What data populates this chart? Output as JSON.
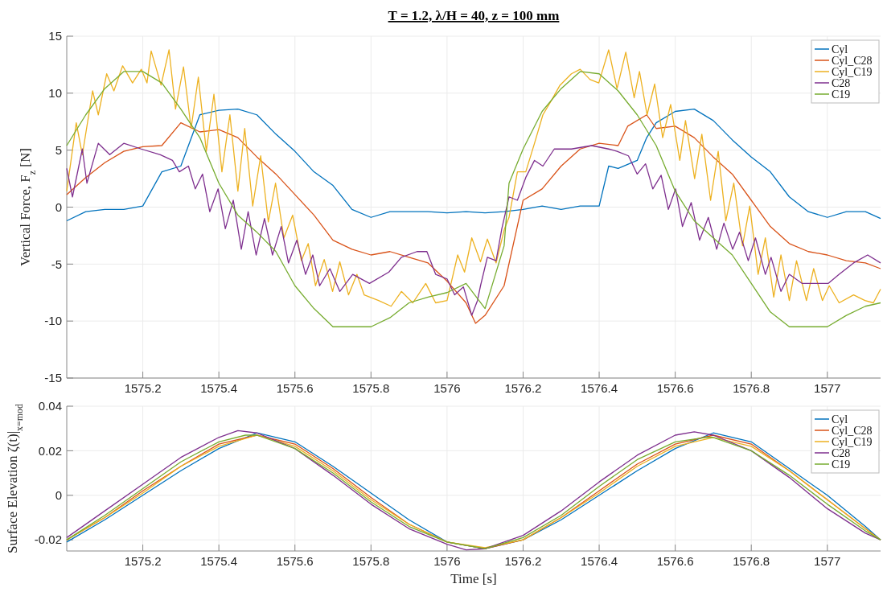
{
  "chart_data": [
    {
      "type": "line",
      "title": "T = 1.2, λ/H = 40, z = 100 mm",
      "ylabel": "Vertical Force, F$_{z}$ [N]",
      "xlim": [
        1575,
        1577.14
      ],
      "xticks": [
        1575.2,
        1575.4,
        1575.6,
        1575.8,
        1576,
        1576.2,
        1576.4,
        1576.6,
        1576.8,
        1577
      ],
      "ylim": [
        -15,
        15
      ],
      "yticks": [
        -15,
        -10,
        -5,
        0,
        5,
        10,
        15
      ],
      "grid": true,
      "legend": "top right",
      "series": [
        {
          "name": "Cyl",
          "color": "#0072bd",
          "x": [
            1575,
            1575.05,
            1575.1,
            1575.15,
            1575.2,
            1575.25,
            1575.3,
            1575.35,
            1575.4,
            1575.45,
            1575.5,
            1575.55,
            1575.6,
            1575.65,
            1575.7,
            1575.75,
            1575.8,
            1575.85,
            1575.9,
            1575.95,
            1576,
            1576.05,
            1576.1,
            1576.15,
            1576.2,
            1576.25,
            1576.3,
            1576.35,
            1576.4,
            1576.425,
            1576.45,
            1576.5,
            1576.525,
            1576.55,
            1576.6,
            1576.65,
            1576.7,
            1576.75,
            1576.8,
            1576.85,
            1576.9,
            1576.95,
            1577,
            1577.05,
            1577.1,
            1577.14
          ],
          "values": [
            -1.2,
            -0.4,
            -0.2,
            -0.2,
            0.1,
            3.1,
            3.6,
            8.1,
            8.5,
            8.6,
            8.1,
            6.4,
            4.9,
            3.1,
            1.9,
            -0.2,
            -0.9,
            -0.4,
            -0.4,
            -0.4,
            -0.5,
            -0.4,
            -0.5,
            -0.4,
            -0.2,
            0.1,
            -0.2,
            0.1,
            0.1,
            3.6,
            3.4,
            4.1,
            6.1,
            7.4,
            8.4,
            8.6,
            7.6,
            5.9,
            4.4,
            3.1,
            0.9,
            -0.4,
            -0.9,
            -0.4,
            -0.4,
            -1.0
          ]
        },
        {
          "name": "Cyl_C28",
          "color": "#d95319",
          "x": [
            1575,
            1575.05,
            1575.1,
            1575.15,
            1575.2,
            1575.25,
            1575.3,
            1575.35,
            1575.4,
            1575.45,
            1575.5,
            1575.55,
            1575.6,
            1575.65,
            1575.7,
            1575.75,
            1575.8,
            1575.85,
            1575.9,
            1575.95,
            1576,
            1576.05,
            1576.075,
            1576.1,
            1576.15,
            1576.2,
            1576.25,
            1576.3,
            1576.35,
            1576.4,
            1576.45,
            1576.475,
            1576.525,
            1576.55,
            1576.6,
            1576.65,
            1576.7,
            1576.75,
            1576.8,
            1576.85,
            1576.9,
            1576.95,
            1577,
            1577.05,
            1577.1,
            1577.14
          ],
          "values": [
            1.1,
            2.6,
            3.9,
            4.9,
            5.3,
            5.4,
            7.4,
            6.6,
            6.8,
            6.1,
            4.4,
            2.9,
            1.1,
            -0.7,
            -2.9,
            -3.7,
            -4.2,
            -3.9,
            -4.4,
            -4.9,
            -6.5,
            -8.4,
            -10.2,
            -9.5,
            -6.9,
            0.6,
            1.6,
            3.6,
            5.1,
            5.6,
            5.4,
            7.1,
            8.1,
            6.9,
            7.1,
            6.1,
            4.4,
            2.9,
            0.6,
            -1.7,
            -3.2,
            -3.9,
            -4.2,
            -4.7,
            -4.9,
            -5.4
          ]
        },
        {
          "name": "Cyl_C19",
          "color": "#edb120",
          "x": [
            1575,
            1575.025,
            1575.041,
            1575.068,
            1575.083,
            1575.105,
            1575.124,
            1575.147,
            1575.173,
            1575.196,
            1575.211,
            1575.222,
            1575.248,
            1575.269,
            1575.286,
            1575.307,
            1575.327,
            1575.346,
            1575.367,
            1575.387,
            1575.408,
            1575.429,
            1575.45,
            1575.468,
            1575.489,
            1575.51,
            1575.53,
            1575.549,
            1575.571,
            1575.594,
            1575.617,
            1575.635,
            1575.654,
            1575.677,
            1575.699,
            1575.718,
            1575.741,
            1575.763,
            1575.782,
            1575.82,
            1575.853,
            1575.88,
            1575.91,
            1575.944,
            1575.97,
            1576,
            1576.028,
            1576.046,
            1576.065,
            1576.088,
            1576.106,
            1576.129,
            1576.151,
            1576.163,
            1576.185,
            1576.207,
            1576.23,
            1576.252,
            1576.275,
            1576.297,
            1576.327,
            1576.35,
            1576.376,
            1576.399,
            1576.425,
            1576.447,
            1576.47,
            1576.492,
            1576.506,
            1576.526,
            1576.546,
            1576.567,
            1576.588,
            1576.612,
            1576.627,
            1576.651,
            1576.67,
            1576.693,
            1576.713,
            1576.733,
            1576.754,
            1576.777,
            1576.796,
            1576.818,
            1576.837,
            1576.859,
            1576.878,
            1576.9,
            1576.919,
            1576.945,
            1576.964,
            1576.987,
            1577.005,
            1577.031,
            1577.069,
            1577.099,
            1577.121,
            1577.14
          ],
          "values": [
            1.4,
            7.4,
            4.6,
            10.2,
            8.1,
            11.7,
            10.2,
            12.4,
            10.9,
            12.1,
            10.9,
            13.7,
            10.7,
            13.8,
            8.6,
            12.3,
            6.9,
            11.4,
            4.9,
            9.9,
            3.1,
            8.1,
            1.4,
            6.9,
            0.1,
            4.5,
            -1.3,
            2.1,
            -2.7,
            -0.7,
            -4.7,
            -3.2,
            -6.9,
            -4.6,
            -7.4,
            -4.8,
            -7.7,
            -5.9,
            -7.7,
            -8.2,
            -8.7,
            -7.4,
            -8.4,
            -6.7,
            -8.4,
            -8.2,
            -4.2,
            -5.7,
            -2.7,
            -4.8,
            -2.8,
            -4.9,
            -1.9,
            -0.9,
            3.1,
            3.1,
            5.6,
            8.1,
            9.4,
            10.7,
            11.7,
            12.1,
            11.2,
            10.9,
            13.8,
            10.4,
            13.6,
            9.6,
            11.9,
            8.1,
            10.8,
            6.1,
            9.0,
            4.1,
            7.6,
            2.5,
            6.4,
            0.6,
            4.9,
            -1.2,
            2.1,
            -3.4,
            0.1,
            -5.9,
            -2.7,
            -7.9,
            -4.2,
            -8.2,
            -4.7,
            -8.2,
            -5.4,
            -8.2,
            -6.9,
            -8.4,
            -7.7,
            -8.2,
            -8.4,
            -7.2
          ]
        },
        {
          "name": "C28",
          "color": "#7e2f8e",
          "x": [
            1575,
            1575.015,
            1575.041,
            1575.053,
            1575.083,
            1575.113,
            1575.15,
            1575.196,
            1575.246,
            1575.278,
            1575.296,
            1575.32,
            1575.338,
            1575.357,
            1575.376,
            1575.398,
            1575.417,
            1575.438,
            1575.459,
            1575.477,
            1575.498,
            1575.52,
            1575.541,
            1575.564,
            1575.583,
            1575.605,
            1575.628,
            1575.647,
            1575.665,
            1575.692,
            1575.718,
            1575.752,
            1575.796,
            1575.847,
            1575.88,
            1575.921,
            1575.947,
            1575.97,
            1576,
            1576.02,
            1576.043,
            1576.065,
            1576.08,
            1576.088,
            1576.106,
            1576.129,
            1576.144,
            1576.163,
            1576.185,
            1576.207,
            1576.23,
            1576.252,
            1576.282,
            1576.327,
            1576.38,
            1576.425,
            1576.447,
            1576.477,
            1576.5,
            1576.522,
            1576.541,
            1576.563,
            1576.582,
            1576.601,
            1576.619,
            1576.642,
            1576.664,
            1576.687,
            1576.709,
            1576.728,
            1576.751,
            1576.769,
            1576.792,
            1576.811,
            1576.837,
            1576.852,
            1576.878,
            1576.9,
            1576.934,
            1576.972,
            1577.002,
            1577.031,
            1577.069,
            1577.106,
            1577.14
          ],
          "values": [
            3.4,
            0.9,
            5.1,
            2.1,
            5.6,
            4.6,
            5.6,
            5.1,
            4.6,
            4.1,
            3.1,
            3.6,
            1.6,
            2.9,
            -0.4,
            1.6,
            -1.9,
            0.6,
            -3.7,
            -0.4,
            -4.2,
            -1.0,
            -4.2,
            -1.7,
            -4.9,
            -2.9,
            -5.9,
            -4.2,
            -6.9,
            -5.4,
            -7.4,
            -5.9,
            -6.7,
            -5.7,
            -4.4,
            -3.9,
            -3.9,
            -5.9,
            -6.3,
            -7.7,
            -7.0,
            -9.5,
            -8.2,
            -6.9,
            -4.4,
            -4.7,
            -1.9,
            0.9,
            0.6,
            2.6,
            4.1,
            3.6,
            5.1,
            5.1,
            5.4,
            5.1,
            4.9,
            4.5,
            2.9,
            3.8,
            1.6,
            2.8,
            -0.2,
            1.6,
            -1.7,
            0.4,
            -2.9,
            -0.9,
            -3.7,
            -1.4,
            -3.7,
            -2.2,
            -4.7,
            -2.7,
            -5.9,
            -4.4,
            -7.4,
            -5.9,
            -6.7,
            -6.7,
            -6.7,
            -5.9,
            -4.9,
            -4.2,
            -4.9
          ]
        },
        {
          "name": "C19",
          "color": "#77ac30",
          "x": [
            1575,
            1575.05,
            1575.1,
            1575.15,
            1575.2,
            1575.25,
            1575.3,
            1575.35,
            1575.4,
            1575.45,
            1575.5,
            1575.55,
            1575.6,
            1575.65,
            1575.7,
            1575.75,
            1575.8,
            1575.85,
            1575.9,
            1575.95,
            1576,
            1576.05,
            1576.1,
            1576.15,
            1576.163,
            1576.2,
            1576.25,
            1576.3,
            1576.35,
            1576.4,
            1576.45,
            1576.5,
            1576.55,
            1576.6,
            1576.65,
            1576.7,
            1576.75,
            1576.8,
            1576.85,
            1576.9,
            1576.95,
            1577,
            1577.05,
            1577.1,
            1577.14
          ],
          "values": [
            5.4,
            8.1,
            10.4,
            11.9,
            11.9,
            10.9,
            8.6,
            6.1,
            2.1,
            -0.7,
            -2.2,
            -3.9,
            -6.9,
            -8.9,
            -10.5,
            -10.5,
            -10.5,
            -9.7,
            -8.4,
            -7.9,
            -7.5,
            -6.7,
            -8.9,
            -3.4,
            2.1,
            5.1,
            8.4,
            10.4,
            11.9,
            11.7,
            10.2,
            8.1,
            5.4,
            1.4,
            -1.2,
            -2.7,
            -4.2,
            -6.7,
            -9.2,
            -10.5,
            -10.5,
            -10.5,
            -9.5,
            -8.7,
            -8.4
          ]
        }
      ]
    },
    {
      "type": "line",
      "xlabel": "Time [s]",
      "ylabel": "Surface Elevation ζ(t)|$_{x=mod}$",
      "xlim": [
        1575,
        1577.14
      ],
      "xticks": [
        1575.2,
        1575.4,
        1575.6,
        1575.8,
        1576,
        1576.2,
        1576.4,
        1576.6,
        1576.8,
        1577
      ],
      "ylim": [
        -0.025,
        0.04
      ],
      "yticks": [
        -0.02,
        0,
        0.02,
        0.04
      ],
      "grid": true,
      "legend": "top right",
      "series": [
        {
          "name": "Cyl",
          "color": "#0072bd",
          "x": [
            1575,
            1575.1,
            1575.2,
            1575.3,
            1575.4,
            1575.5,
            1575.6,
            1575.7,
            1575.8,
            1575.9,
            1576,
            1576.1,
            1576.2,
            1576.3,
            1576.4,
            1576.5,
            1576.6,
            1576.7,
            1576.8,
            1576.9,
            1577,
            1577.1,
            1577.14
          ],
          "values": [
            -0.021,
            -0.011,
            0.0,
            0.011,
            0.021,
            0.028,
            0.024,
            0.013,
            0.001,
            -0.011,
            -0.021,
            -0.024,
            -0.02,
            -0.011,
            0.0,
            0.011,
            0.021,
            0.028,
            0.024,
            0.012,
            0.0,
            -0.014,
            -0.02
          ]
        },
        {
          "name": "Cyl_C28",
          "color": "#d95319",
          "x": [
            1575,
            1575.1,
            1575.2,
            1575.3,
            1575.4,
            1575.5,
            1575.6,
            1575.7,
            1575.8,
            1575.9,
            1576,
            1576.1,
            1576.2,
            1576.3,
            1576.4,
            1576.5,
            1576.6,
            1576.7,
            1576.8,
            1576.9,
            1577,
            1577.1,
            1577.14
          ],
          "values": [
            -0.02,
            -0.01,
            0.002,
            0.013,
            0.023,
            0.027,
            0.023,
            0.012,
            -0.001,
            -0.013,
            -0.021,
            -0.024,
            -0.02,
            -0.01,
            0.002,
            0.014,
            0.023,
            0.027,
            0.023,
            0.011,
            -0.002,
            -0.015,
            -0.02
          ]
        },
        {
          "name": "Cyl_C19",
          "color": "#edb120",
          "x": [
            1575,
            1575.1,
            1575.2,
            1575.3,
            1575.4,
            1575.5,
            1575.6,
            1575.7,
            1575.8,
            1575.9,
            1576,
            1576.1,
            1576.2,
            1576.3,
            1576.4,
            1576.5,
            1576.6,
            1576.7,
            1576.8,
            1576.9,
            1577,
            1577.1,
            1577.14
          ],
          "values": [
            -0.02,
            -0.01,
            0.001,
            0.013,
            0.022,
            0.027,
            0.022,
            0.011,
            -0.002,
            -0.013,
            -0.021,
            -0.0235,
            -0.02,
            -0.01,
            0.001,
            0.013,
            0.022,
            0.026,
            0.022,
            0.011,
            -0.002,
            -0.015,
            -0.02
          ]
        },
        {
          "name": "C28",
          "color": "#7e2f8e",
          "x": [
            1575,
            1575.1,
            1575.2,
            1575.3,
            1575.4,
            1575.45,
            1575.5,
            1575.6,
            1575.7,
            1575.8,
            1575.9,
            1576,
            1576.05,
            1576.1,
            1576.2,
            1576.3,
            1576.4,
            1576.5,
            1576.6,
            1576.65,
            1576.7,
            1576.8,
            1576.9,
            1577,
            1577.1,
            1577.14
          ],
          "values": [
            -0.019,
            -0.007,
            0.005,
            0.017,
            0.026,
            0.029,
            0.028,
            0.021,
            0.009,
            -0.004,
            -0.015,
            -0.022,
            -0.0245,
            -0.024,
            -0.018,
            -0.007,
            0.006,
            0.018,
            0.027,
            0.0285,
            0.027,
            0.02,
            0.008,
            -0.006,
            -0.017,
            -0.02
          ]
        },
        {
          "name": "C19",
          "color": "#77ac30",
          "x": [
            1575,
            1575.1,
            1575.2,
            1575.3,
            1575.4,
            1575.47,
            1575.5,
            1575.6,
            1575.7,
            1575.8,
            1575.9,
            1576,
            1576.1,
            1576.2,
            1576.3,
            1576.4,
            1576.5,
            1576.6,
            1576.68,
            1576.7,
            1576.8,
            1576.9,
            1577,
            1577.1,
            1577.14
          ],
          "values": [
            -0.02,
            -0.009,
            0.003,
            0.015,
            0.024,
            0.027,
            0.027,
            0.021,
            0.01,
            -0.003,
            -0.014,
            -0.021,
            -0.024,
            -0.019,
            -0.009,
            0.004,
            0.016,
            0.024,
            0.026,
            0.026,
            0.02,
            0.009,
            -0.004,
            -0.016,
            -0.02
          ]
        }
      ]
    }
  ]
}
